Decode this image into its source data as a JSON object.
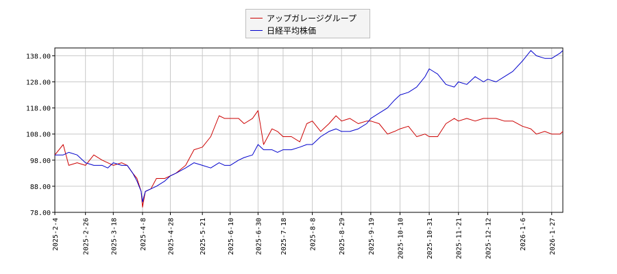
{
  "chart_data": {
    "type": "line",
    "title": "",
    "xlabel": "",
    "ylabel": "",
    "ylim": [
      78.0,
      141.0
    ],
    "grid": true,
    "legend_placement": "top-center",
    "yticks": [
      "78.00",
      "88.00",
      "98.00",
      "108.00",
      "118.00",
      "128.00",
      "138.00"
    ],
    "xticks": [
      "2025-2-4",
      "2025-2-26",
      "2025-3-18",
      "2025-4-8",
      "2025-4-28",
      "2025-5-21",
      "2025-6-10",
      "2025-6-30",
      "2025-7-18",
      "2025-8-8",
      "2025-8-29",
      "2025-9-19",
      "2025-10-10",
      "2025-10-31",
      "2025-11-21",
      "2025-12-12",
      "2026-1-6",
      "2026-1-27"
    ],
    "x": [
      "2025-2-4",
      "2025-2-10",
      "2025-2-14",
      "2025-2-20",
      "2025-2-26",
      "2025-3-4",
      "2025-3-10",
      "2025-3-14",
      "2025-3-18",
      "2025-3-24",
      "2025-3-28",
      "2025-4-1",
      "2025-4-4",
      "2025-4-7",
      "2025-4-8",
      "2025-4-10",
      "2025-4-14",
      "2025-4-18",
      "2025-4-24",
      "2025-4-28",
      "2025-5-2",
      "2025-5-9",
      "2025-5-15",
      "2025-5-21",
      "2025-5-27",
      "2025-6-2",
      "2025-6-6",
      "2025-6-10",
      "2025-6-16",
      "2025-6-20",
      "2025-6-26",
      "2025-6-30",
      "2025-7-4",
      "2025-7-10",
      "2025-7-14",
      "2025-7-18",
      "2025-7-24",
      "2025-7-30",
      "2025-8-4",
      "2025-8-8",
      "2025-8-14",
      "2025-8-20",
      "2025-8-25",
      "2025-8-29",
      "2025-9-4",
      "2025-9-10",
      "2025-9-16",
      "2025-9-19",
      "2025-9-25",
      "2025-10-1",
      "2025-10-6",
      "2025-10-10",
      "2025-10-16",
      "2025-10-22",
      "2025-10-28",
      "2025-10-31",
      "2025-11-6",
      "2025-11-12",
      "2025-11-18",
      "2025-11-21",
      "2025-11-27",
      "2025-12-3",
      "2025-12-9",
      "2025-12-12",
      "2025-12-18",
      "2025-12-24",
      "2025-12-30",
      "2026-1-6",
      "2026-1-12",
      "2026-1-16",
      "2026-1-22",
      "2026-1-27",
      "2026-2-2",
      "2026-2-4"
    ],
    "series": [
      {
        "name": "アップガレージグループ",
        "color": "#cc0000",
        "values": [
          100,
          104,
          96,
          97,
          96,
          100,
          98,
          97,
          96,
          97,
          96,
          93,
          91,
          86,
          80,
          86,
          87,
          91,
          91,
          92,
          93,
          96,
          102,
          103,
          107,
          115,
          114,
          114,
          114,
          112,
          114,
          117,
          104,
          110,
          109,
          107,
          107,
          105,
          112,
          113,
          109,
          112,
          115,
          113,
          114,
          112,
          113,
          113,
          112,
          108,
          109,
          110,
          111,
          107,
          108,
          107,
          107,
          112,
          114,
          113,
          114,
          113,
          114,
          114,
          114,
          113,
          113,
          111,
          110,
          108,
          109,
          108,
          108,
          109
        ]
      },
      {
        "name": "日経平均株価",
        "color": "#0000cc",
        "values": [
          100,
          100,
          101,
          100,
          97,
          96,
          96,
          95,
          97,
          96,
          96,
          93,
          90,
          86,
          82,
          86,
          87,
          88,
          90,
          92,
          93,
          95,
          97,
          96,
          95,
          97,
          96,
          96,
          98,
          99,
          100,
          104,
          102,
          102,
          101,
          102,
          102,
          103,
          104,
          104,
          107,
          109,
          110,
          109,
          109,
          110,
          112,
          114,
          116,
          118,
          121,
          123,
          124,
          126,
          130,
          133,
          131,
          127,
          126,
          128,
          127,
          130,
          128,
          129,
          128,
          130,
          132,
          136,
          140,
          138,
          137,
          137,
          139,
          140
        ]
      }
    ]
  }
}
